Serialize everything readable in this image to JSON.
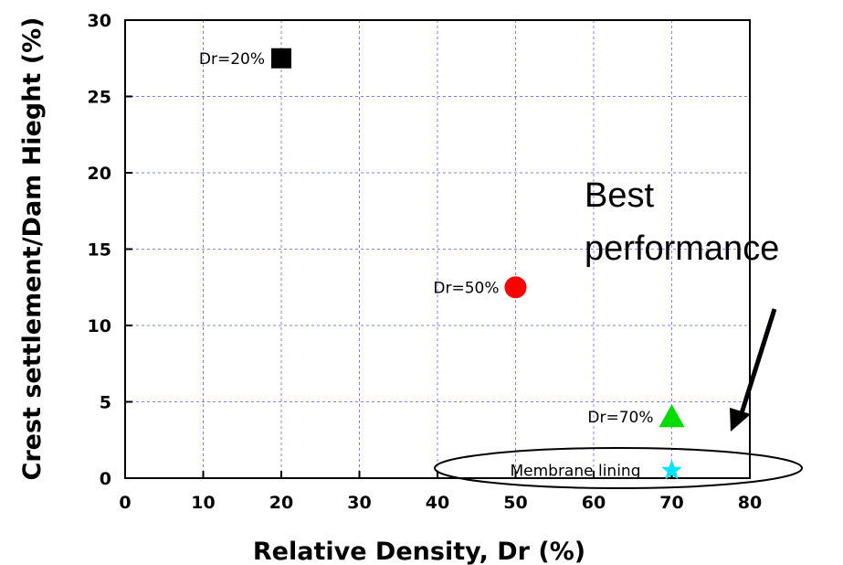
{
  "chart_data": {
    "type": "scatter",
    "title": "",
    "xlabel": "Relative Density, Dr (%)",
    "ylabel": "Crest settlement/Dam Hieght (%)",
    "xlim": [
      0,
      80
    ],
    "ylim": [
      0,
      30
    ],
    "x_ticks": [
      "0",
      "10",
      "20",
      "30",
      "40",
      "50",
      "60",
      "70",
      "80"
    ],
    "y_ticks": [
      "0",
      "5",
      "10",
      "15",
      "20",
      "25",
      "30"
    ],
    "grid": true,
    "points": [
      {
        "label": "Dr=20%",
        "x": 20,
        "y": 27.5,
        "marker": "square",
        "color": "#000000"
      },
      {
        "label": "Dr=50%",
        "x": 50,
        "y": 12.5,
        "marker": "circle",
        "color": "#ff0000"
      },
      {
        "label": "Dr=70%",
        "x": 70,
        "y": 4,
        "marker": "triangle",
        "color": "#00dd00"
      },
      {
        "label": "Membrane lining",
        "x": 70,
        "y": 0.5,
        "marker": "star",
        "color": "#00e5ff"
      }
    ],
    "annotation": {
      "lines": [
        "Best",
        "performance"
      ]
    },
    "grid_color": "#8080ff"
  }
}
